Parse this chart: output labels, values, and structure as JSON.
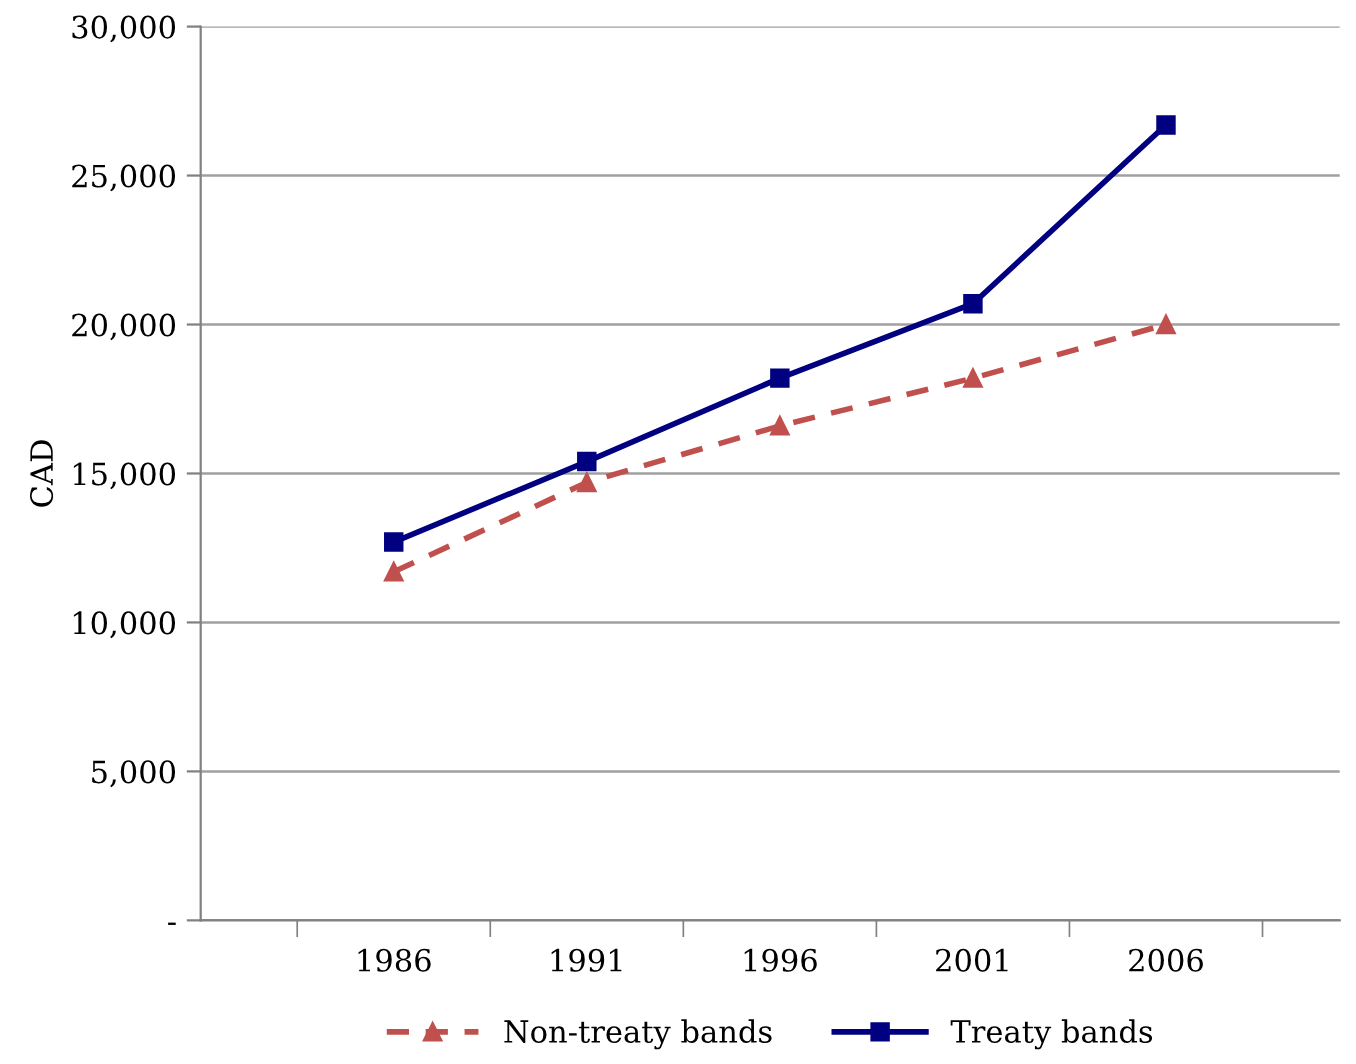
{
  "chart_data": {
    "type": "line",
    "ylabel": "CAD",
    "categories": [
      "1986",
      "1991",
      "1996",
      "2001",
      "2006"
    ],
    "series": [
      {
        "name": "Non-treaty bands",
        "color": "#c0504d",
        "values": [
          11700,
          14700,
          16600,
          18200,
          20000
        ],
        "marker": "triangle",
        "line_style": "dashed"
      },
      {
        "name": "Treaty bands",
        "color": "#000080",
        "values": [
          12700,
          15400,
          18200,
          20700,
          26700
        ],
        "marker": "square",
        "line_style": "solid"
      }
    ],
    "ylim": [
      0,
      30000
    ],
    "yticks": [
      {
        "value": 0,
        "label": "-"
      },
      {
        "value": 5000,
        "label": "5,000"
      },
      {
        "value": 10000,
        "label": "10,000"
      },
      {
        "value": 15000,
        "label": "15,000"
      },
      {
        "value": 20000,
        "label": "20,000"
      },
      {
        "value": 25000,
        "label": "25,000"
      },
      {
        "value": 30000,
        "label": "30,000"
      }
    ],
    "grid": "y",
    "legend": "bottom"
  }
}
